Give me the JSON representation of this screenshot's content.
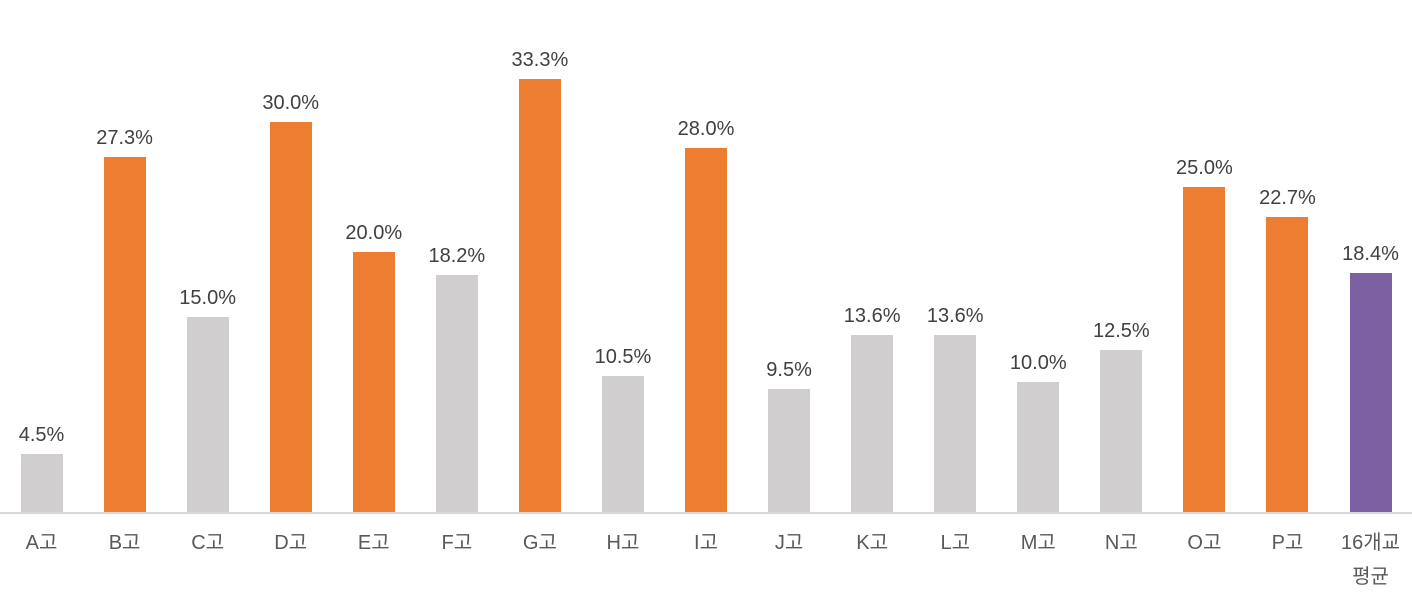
{
  "chart_data": {
    "type": "bar",
    "title": "",
    "xlabel": "",
    "ylabel": "",
    "ylim": [
      0,
      35
    ],
    "grid": false,
    "legend": false,
    "data_labels_shown": true,
    "categories": [
      "A고",
      "B고",
      "C고",
      "D고",
      "E고",
      "F고",
      "G고",
      "H고",
      "I고",
      "J고",
      "K고",
      "L고",
      "M고",
      "N고",
      "O고",
      "P고",
      "16개교\n평균"
    ],
    "values": [
      4.5,
      27.3,
      15.0,
      30.0,
      20.0,
      18.2,
      33.3,
      10.5,
      28.0,
      9.5,
      13.6,
      13.6,
      10.0,
      12.5,
      25.0,
      22.7,
      18.4
    ],
    "value_labels": [
      "4.5%",
      "27.3%",
      "15.0%",
      "30.0%",
      "20.0%",
      "18.2%",
      "33.3%",
      "10.5%",
      "28.0%",
      "9.5%",
      "13.6%",
      "13.6%",
      "10.0%",
      "12.5%",
      "25.0%",
      "22.7%",
      "18.4%"
    ],
    "bar_colors": [
      "#D0CECE",
      "#ED7D31",
      "#D0CECE",
      "#ED7D31",
      "#ED7D31",
      "#D0CECE",
      "#ED7D31",
      "#D0CECE",
      "#ED7D31",
      "#D0CECE",
      "#D0CECE",
      "#D0CECE",
      "#D0CECE",
      "#D0CECE",
      "#ED7D31",
      "#ED7D31",
      "#7D60A1"
    ],
    "colors": {
      "above_average_bar": "#ED7D31",
      "below_average_bar": "#D0CECE",
      "average_bar": "#7D60A1",
      "axis_line": "#D9D9D9",
      "value_label_text": "#404040",
      "category_label_text": "#595959"
    }
  }
}
